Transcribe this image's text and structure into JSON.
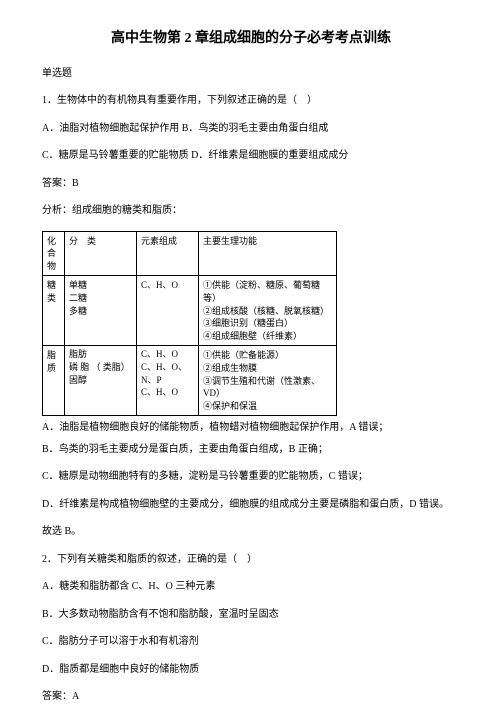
{
  "title": "高中生物第 2 章组成细胞的分子必考考点训练",
  "section": "单选题",
  "q1": {
    "stem": "1．生物体中的有机物具有重要作用，下列叙述正确的是（　）",
    "optA": "A．油脂对植物细胞起保护作用 B．鸟类的羽毛主要由角蛋白组成",
    "optC": "C．糖原是马铃薯重要的贮能物质 D．纤维素是细胞膜的重要组成成分",
    "answer": "答案：B",
    "analysisLabel": "分析：组成细胞的糖类和脂质："
  },
  "table": {
    "hdr_c1": "化合物",
    "hdr_c2": "分　类",
    "hdr_c3": "元素组成",
    "hdr_c4": "主要生理功能",
    "r1_c1": "糖类",
    "r1_c2": "单糖\n二糖\n多糖",
    "r1_c3": "C、H、O",
    "r1_c4": "①供能（淀粉、糖原、葡萄糖等）\n②组成核酸（核糖、脱氧核糖）\n③细胞识别（糖蛋白）\n④组成细胞壁（纤维素）",
    "r2_c1": "脂质",
    "r2_c2a": "脂肪",
    "r2_c2b": "磷 脂 （ 类脂）",
    "r2_c2c": "固醇",
    "r2_c3a": "C、H、O",
    "r2_c3b": "C、H、O、N、P",
    "r2_c3c": "C、H、O",
    "r2_c4": "①供能（贮备能源）\n②组成生物膜\n③调节生殖和代谢（性激素、VD）\n④保护和保温"
  },
  "explA": "A．油脂是植物细胞良好的储能物质，植物蜡对植物细胞起保护作用，A 错误；",
  "explB": "B．鸟类的羽毛主要成分是蛋白质，主要由角蛋白组成，B 正确；",
  "explC": "C．糖原是动物细胞特有的多糖，淀粉是马铃薯重要的贮能物质，C 错误；",
  "explD": "D．纤维素是构成植物细胞壁的主要成分，细胞膜的组成成分主要是磷脂和蛋白质，D 错误。",
  "hence": "故选 B。",
  "q2": {
    "stem": "2．下列有关糖类和脂质的叙述，正确的是（　）",
    "optA": "A．糖类和脂肪都含 C、H、O 三种元素",
    "optB": "B．大多数动物脂肪含有不饱和脂肪酸，室温时呈固态",
    "optC": "C．脂肪分子可以溶于水和有机溶剂",
    "optD": "D．脂质都是细胞中良好的储能物质",
    "answer": "答案：A"
  }
}
